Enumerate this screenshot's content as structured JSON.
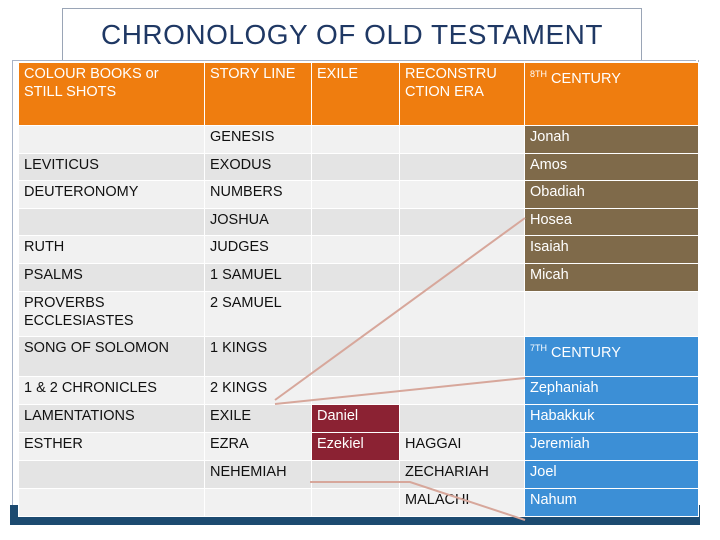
{
  "title": "CHRONOLOGY OF OLD TESTAMENT",
  "header": {
    "col1": "COLOUR BOOKS or STILL SHOTS",
    "col2": "STORY LINE",
    "col3": "EXILE",
    "col4": "RECONSTRU CTION ERA",
    "col5_sup": "8TH",
    "col5_text": "CENTURY"
  },
  "rows": [
    {
      "c1": "",
      "c2": "GENESIS",
      "c3": "",
      "c4": "",
      "c5": "Jonah"
    },
    {
      "c1": "LEVITICUS",
      "c2": "EXODUS",
      "c3": "",
      "c4": "",
      "c5": "Amos"
    },
    {
      "c1": "DEUTERONOMY",
      "c2": "NUMBERS",
      "c3": "",
      "c4": "",
      "c5": "Obadiah"
    },
    {
      "c1": "",
      "c2": "JOSHUA",
      "c3": "",
      "c4": "",
      "c5": "Hosea"
    },
    {
      "c1": "RUTH",
      "c2": "JUDGES",
      "c3": "",
      "c4": "",
      "c5": "Isaiah"
    },
    {
      "c1": "PSALMS",
      "c2": "1 SAMUEL",
      "c3": "",
      "c4": "",
      "c5": "Micah"
    },
    {
      "c1": "PROVERBS ECCLESIASTES",
      "c2": "2 SAMUEL",
      "c3": "",
      "c4": "",
      "c5": ""
    },
    {
      "c1": "SONG OF SOLOMON",
      "c2": "1 KINGS",
      "c3": "",
      "c4": "",
      "c5_sup": "7TH",
      "c5": "CENTURY"
    },
    {
      "c1": "1 & 2 CHRONICLES",
      "c2": "2 KINGS",
      "c3": "",
      "c4": "",
      "c5": "Zephaniah"
    },
    {
      "c1": "LAMENTATIONS",
      "c2": "EXILE",
      "c3": "Daniel",
      "c4": "",
      "c5": "Habakkuk"
    },
    {
      "c1": "ESTHER",
      "c2": "EZRA",
      "c3": "Ezekiel",
      "c4": "HAGGAI",
      "c5": "Jeremiah"
    },
    {
      "c1": "",
      "c2": "NEHEMIAH",
      "c3": "",
      "c4": "ZECHARIAH",
      "c5": "Joel"
    },
    {
      "c1": "",
      "c2": "",
      "c3": "",
      "c4": "MALACHI",
      "c5": "Nahum"
    }
  ],
  "colors": {
    "header": "#ef7d0f",
    "eighth_century": "#7f6a4a",
    "seventh_century": "#3c8fd6",
    "exile_prophets": "#8b2233",
    "connector": "#d7a79b"
  }
}
